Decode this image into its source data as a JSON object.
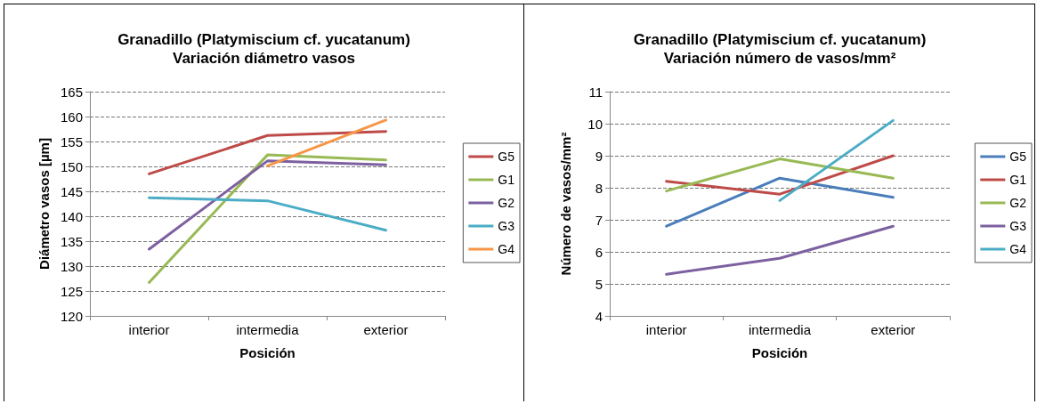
{
  "chart_data": [
    {
      "type": "line",
      "title": "Granadillo (Platymiscium cf. yucatanum)",
      "subtitle": "Variación diámetro vasos",
      "xlabel": "Posición",
      "ylabel": "Diámetro vasos [µm]",
      "categories": [
        "interior",
        "intermedia",
        "exterior"
      ],
      "ylim": [
        120,
        165
      ],
      "yticks": [
        120,
        125,
        130,
        135,
        140,
        145,
        150,
        155,
        160,
        165
      ],
      "grid": "y",
      "legend": "right",
      "marker": "none",
      "series": [
        {
          "name": "G5",
          "color": "#be4b48",
          "values": [
            148.5,
            156.2,
            157.0
          ]
        },
        {
          "name": "G1",
          "color": "#98b954",
          "values": [
            126.7,
            152.3,
            151.3
          ]
        },
        {
          "name": "G2",
          "color": "#7d60a0",
          "values": [
            133.4,
            151.1,
            150.3
          ]
        },
        {
          "name": "G3",
          "color": "#4bacc6",
          "values": [
            143.7,
            143.1,
            137.2
          ]
        },
        {
          "name": "G4",
          "color": "#f79646",
          "values": [
            null,
            150.1,
            159.3
          ]
        }
      ]
    },
    {
      "type": "line",
      "title": "Granadillo (Platymiscium cf. yucatanum)",
      "subtitle": "Variación número de vasos/mm²",
      "xlabel": "Posición",
      "ylabel": "Número de vasos/mm²",
      "categories": [
        "interior",
        "intermedia",
        "exterior"
      ],
      "ylim": [
        4,
        11
      ],
      "yticks": [
        4,
        5,
        6,
        7,
        8,
        9,
        10,
        11
      ],
      "grid": "y",
      "legend": "right",
      "marker": "none",
      "series": [
        {
          "name": "G5",
          "color": "#4a7ebb",
          "values": [
            6.8,
            8.3,
            7.7
          ]
        },
        {
          "name": "G1",
          "color": "#be4b48",
          "values": [
            8.2,
            7.8,
            9.0
          ]
        },
        {
          "name": "G2",
          "color": "#98b954",
          "values": [
            7.9,
            8.9,
            8.3
          ]
        },
        {
          "name": "G3",
          "color": "#7d60a0",
          "values": [
            5.3,
            5.8,
            6.8
          ]
        },
        {
          "name": "G4",
          "color": "#4bacc6",
          "values": [
            null,
            7.6,
            10.1
          ]
        }
      ]
    }
  ]
}
